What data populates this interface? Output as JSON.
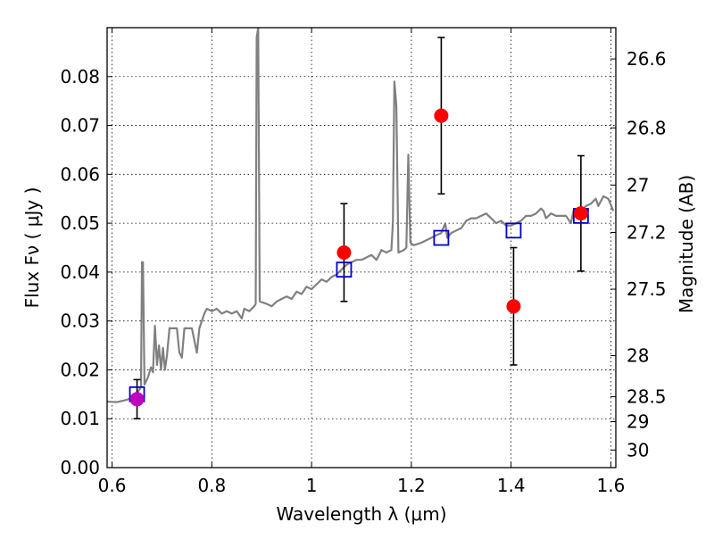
{
  "chart_data": {
    "type": "line",
    "title": "",
    "xlabel": "Wavelength  λ (μm)",
    "ylabel": "Flux  Fν  ( μJy )",
    "ylabel_right": "Magnitude (AB)",
    "xlim": [
      0.59,
      1.61
    ],
    "ylim": [
      0.0,
      0.09
    ],
    "grid": true,
    "x_ticks": [
      0.6,
      0.8,
      1.0,
      1.2,
      1.4,
      1.6
    ],
    "x_tick_labels": [
      "0.6",
      "0.8",
      "1",
      "1.2",
      "1.4",
      "1.6"
    ],
    "y_ticks": [
      0.0,
      0.01,
      0.02,
      0.03,
      0.04,
      0.05,
      0.06,
      0.07,
      0.08
    ],
    "y_tick_labels": [
      "0.00",
      "0.01",
      "0.02",
      "0.03",
      "0.04",
      "0.05",
      "0.06",
      "0.07",
      "0.08"
    ],
    "right_ticks": [
      {
        "label": "26.6",
        "flux": 0.0836
      },
      {
        "label": "26.8",
        "flux": 0.0695
      },
      {
        "label": "27",
        "flux": 0.0578
      },
      {
        "label": "27.2",
        "flux": 0.0481
      },
      {
        "label": "27.5",
        "flux": 0.0365
      },
      {
        "label": "28",
        "flux": 0.0229
      },
      {
        "label": "28.5",
        "flux": 0.0145
      },
      {
        "label": "29",
        "flux": 0.0094
      },
      {
        "label": "30",
        "flux": 0.0036
      }
    ],
    "series": [
      {
        "kind": "spectrum",
        "color": "#808080",
        "points": [
          [
            0.59,
            0.0135
          ],
          [
            0.61,
            0.0134
          ],
          [
            0.63,
            0.0139
          ],
          [
            0.645,
            0.0145
          ],
          [
            0.655,
            0.016
          ],
          [
            0.658,
            0.0165
          ],
          [
            0.66,
            0.042
          ],
          [
            0.662,
            0.042
          ],
          [
            0.665,
            0.017
          ],
          [
            0.672,
            0.0185
          ],
          [
            0.678,
            0.0205
          ],
          [
            0.682,
            0.0195
          ],
          [
            0.686,
            0.029
          ],
          [
            0.69,
            0.021
          ],
          [
            0.694,
            0.025
          ],
          [
            0.698,
            0.02
          ],
          [
            0.702,
            0.0245
          ],
          [
            0.706,
            0.02
          ],
          [
            0.71,
            0.023
          ],
          [
            0.715,
            0.0285
          ],
          [
            0.73,
            0.0285
          ],
          [
            0.735,
            0.0235
          ],
          [
            0.74,
            0.0225
          ],
          [
            0.745,
            0.0285
          ],
          [
            0.76,
            0.0285
          ],
          [
            0.765,
            0.026
          ],
          [
            0.77,
            0.0235
          ],
          [
            0.775,
            0.0285
          ],
          [
            0.785,
            0.0315
          ],
          [
            0.79,
            0.0325
          ],
          [
            0.8,
            0.032
          ],
          [
            0.81,
            0.0325
          ],
          [
            0.82,
            0.0315
          ],
          [
            0.83,
            0.032
          ],
          [
            0.84,
            0.0315
          ],
          [
            0.85,
            0.032
          ],
          [
            0.86,
            0.0305
          ],
          [
            0.865,
            0.0325
          ],
          [
            0.875,
            0.032
          ],
          [
            0.885,
            0.033
          ],
          [
            0.888,
            0.0335
          ],
          [
            0.89,
            0.088
          ],
          [
            0.893,
            0.09
          ],
          [
            0.896,
            0.034
          ],
          [
            0.91,
            0.0335
          ],
          [
            0.92,
            0.033
          ],
          [
            0.93,
            0.034
          ],
          [
            0.94,
            0.0345
          ],
          [
            0.95,
            0.035
          ],
          [
            0.96,
            0.0345
          ],
          [
            0.97,
            0.036
          ],
          [
            0.98,
            0.0355
          ],
          [
            0.99,
            0.037
          ],
          [
            1.0,
            0.0365
          ],
          [
            1.01,
            0.0375
          ],
          [
            1.02,
            0.0385
          ],
          [
            1.03,
            0.038
          ],
          [
            1.04,
            0.039
          ],
          [
            1.05,
            0.0395
          ],
          [
            1.06,
            0.0405
          ],
          [
            1.07,
            0.0415
          ],
          [
            1.08,
            0.042
          ],
          [
            1.09,
            0.0425
          ],
          [
            1.1,
            0.0425
          ],
          [
            1.11,
            0.043
          ],
          [
            1.12,
            0.0435
          ],
          [
            1.13,
            0.0425
          ],
          [
            1.14,
            0.0445
          ],
          [
            1.15,
            0.044
          ],
          [
            1.16,
            0.0445
          ],
          [
            1.163,
            0.05
          ],
          [
            1.166,
            0.079
          ],
          [
            1.17,
            0.074
          ],
          [
            1.174,
            0.044
          ],
          [
            1.185,
            0.0445
          ],
          [
            1.19,
            0.045
          ],
          [
            1.194,
            0.064
          ],
          [
            1.198,
            0.046
          ],
          [
            1.205,
            0.0455
          ],
          [
            1.22,
            0.046
          ],
          [
            1.24,
            0.047
          ],
          [
            1.25,
            0.0475
          ],
          [
            1.26,
            0.048
          ],
          [
            1.268,
            0.05
          ],
          [
            1.272,
            0.047
          ],
          [
            1.28,
            0.048
          ],
          [
            1.29,
            0.0485
          ],
          [
            1.3,
            0.049
          ],
          [
            1.31,
            0.0505
          ],
          [
            1.32,
            0.051
          ],
          [
            1.33,
            0.051
          ],
          [
            1.34,
            0.0515
          ],
          [
            1.35,
            0.052
          ],
          [
            1.36,
            0.051
          ],
          [
            1.37,
            0.05
          ],
          [
            1.38,
            0.0505
          ],
          [
            1.39,
            0.0495
          ],
          [
            1.4,
            0.0495
          ],
          [
            1.41,
            0.05
          ],
          [
            1.42,
            0.0505
          ],
          [
            1.43,
            0.0515
          ],
          [
            1.44,
            0.0515
          ],
          [
            1.45,
            0.052
          ],
          [
            1.46,
            0.053
          ],
          [
            1.465,
            0.0525
          ],
          [
            1.47,
            0.051
          ],
          [
            1.48,
            0.052
          ],
          [
            1.49,
            0.0515
          ],
          [
            1.5,
            0.0515
          ],
          [
            1.51,
            0.0515
          ],
          [
            1.52,
            0.05
          ],
          [
            1.525,
            0.0525
          ],
          [
            1.53,
            0.052
          ],
          [
            1.54,
            0.0525
          ],
          [
            1.55,
            0.0535
          ],
          [
            1.56,
            0.054
          ],
          [
            1.57,
            0.055
          ],
          [
            1.575,
            0.0535
          ],
          [
            1.58,
            0.0545
          ],
          [
            1.585,
            0.0555
          ],
          [
            1.595,
            0.055
          ],
          [
            1.605,
            0.0525
          ]
        ]
      },
      {
        "kind": "model-photometry",
        "color": "#0000cc",
        "marker": "open-square",
        "x": [
          0.65,
          1.065,
          1.26,
          1.405,
          1.54
        ],
        "y": [
          0.015,
          0.0405,
          0.047,
          0.0485,
          0.0515
        ]
      },
      {
        "kind": "observed-photometry",
        "color": "#ff0000",
        "marker": "filled-circle",
        "x": [
          1.065,
          1.26,
          1.405,
          1.54
        ],
        "y": [
          0.044,
          0.072,
          0.033,
          0.052
        ],
        "err": [
          0.01,
          0.016,
          0.012,
          0.0118
        ]
      },
      {
        "kind": "observed-photometry",
        "color": "#bf00bf",
        "marker": "filled-circle",
        "x": [
          0.65
        ],
        "y": [
          0.014
        ],
        "err": [
          0.004
        ]
      }
    ]
  }
}
